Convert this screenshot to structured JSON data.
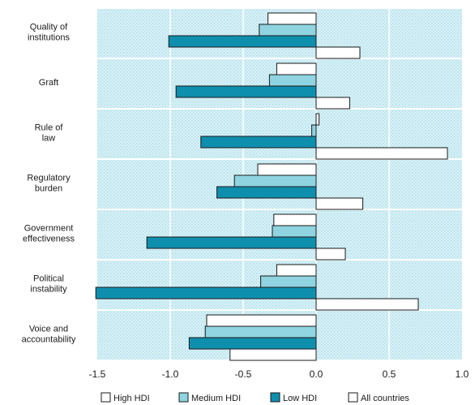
{
  "chart_data": {
    "type": "bar",
    "orientation": "horizontal",
    "categories": [
      [
        "Quality of",
        "institutions"
      ],
      [
        "Graft"
      ],
      [
        "Rule of",
        "law"
      ],
      [
        "Regulatory",
        "burden"
      ],
      [
        "Government",
        "effectiveness"
      ],
      [
        "Political",
        "instability"
      ],
      [
        "Voice and",
        "accountability"
      ]
    ],
    "series": [
      {
        "name": "High HDI",
        "values": [
          -0.33,
          -0.27,
          0.02,
          -0.4,
          -0.29,
          -0.27,
          -0.75
        ]
      },
      {
        "name": "Medium HDI",
        "values": [
          -0.39,
          -0.32,
          -0.03,
          -0.56,
          -0.3,
          -0.38,
          -0.76
        ]
      },
      {
        "name": "Low HDI",
        "values": [
          -1.01,
          -0.96,
          -0.79,
          -0.68,
          -1.16,
          -1.51,
          -0.87
        ]
      },
      {
        "name": "All countries",
        "values": [
          0.3,
          0.23,
          0.9,
          0.32,
          0.2,
          0.7,
          -0.59
        ]
      }
    ],
    "xlim": [
      -1.5,
      1.0
    ],
    "xticks": [
      -1.5,
      -1.0,
      -0.5,
      0.0,
      0.5,
      1.0
    ],
    "xtick_labels": [
      "-1.5",
      "-1.0",
      "-0.5",
      "0.0",
      "0.5",
      "1.0"
    ],
    "title": "",
    "xlabel": "",
    "ylabel": "",
    "grid": true,
    "legend_position": "bottom",
    "colors": {
      "High HDI": "#ffffff",
      "Medium HDI": "#8fd4e0",
      "Low HDI": "#0f8fae",
      "All countries": "#ffffff",
      "panel": "#d3eef5",
      "bar_stroke": "#1a1a1a"
    }
  }
}
